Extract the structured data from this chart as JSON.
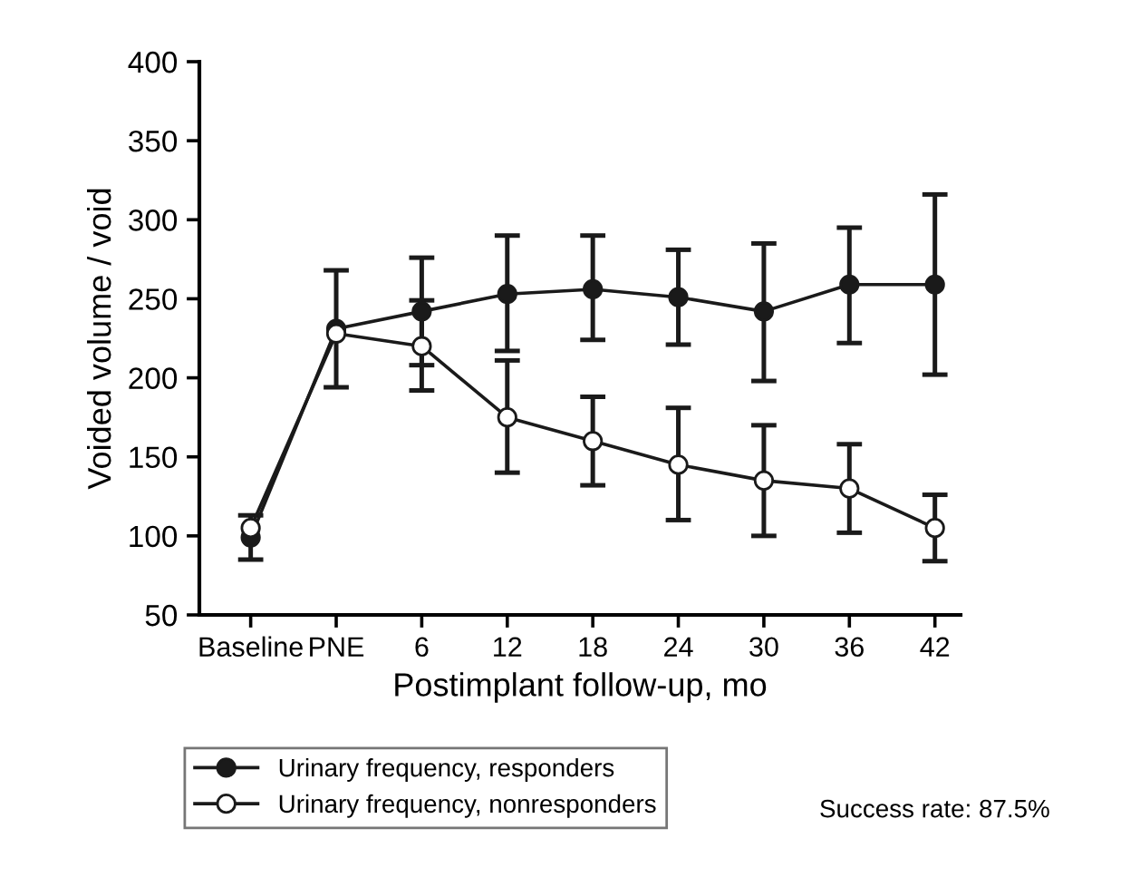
{
  "chart_data": {
    "type": "line",
    "xlabel": "Postimplant follow-up, mo",
    "ylabel": "Voided volume / void",
    "categories": [
      "Baseline",
      "PNE",
      "6",
      "12",
      "18",
      "24",
      "30",
      "36",
      "42"
    ],
    "ylim": [
      50,
      400
    ],
    "yticks": [
      50,
      100,
      150,
      200,
      250,
      300,
      350,
      400
    ],
    "series": [
      {
        "name": "Urinary frequency, responders",
        "color": "#1a1a1a",
        "marker": "circle",
        "values": [
          99,
          231,
          242,
          253,
          256,
          251,
          242,
          259,
          259
        ],
        "errors": [
          [
            85,
            113
          ],
          [
            194,
            268
          ],
          [
            208,
            276
          ],
          [
            217,
            290
          ],
          [
            224,
            290
          ],
          [
            221,
            281
          ],
          [
            198,
            285
          ],
          [
            222,
            295
          ],
          [
            202,
            316
          ]
        ]
      },
      {
        "name": "Urinary frequency, nonresponders",
        "color": "#1a1a1a",
        "marker": "circle",
        "values": [
          105,
          228,
          220,
          175,
          160,
          145,
          135,
          130,
          105
        ],
        "errors": [
          null,
          null,
          [
            192,
            249
          ],
          [
            140,
            211
          ],
          [
            132,
            188
          ],
          [
            110,
            181
          ],
          [
            100,
            170
          ],
          [
            102,
            158
          ],
          [
            84,
            126
          ]
        ]
      }
    ],
    "legend": "bottom left",
    "grid": false,
    "line_style": "solid",
    "annotations": [
      "Success rate: 87.5%"
    ]
  }
}
